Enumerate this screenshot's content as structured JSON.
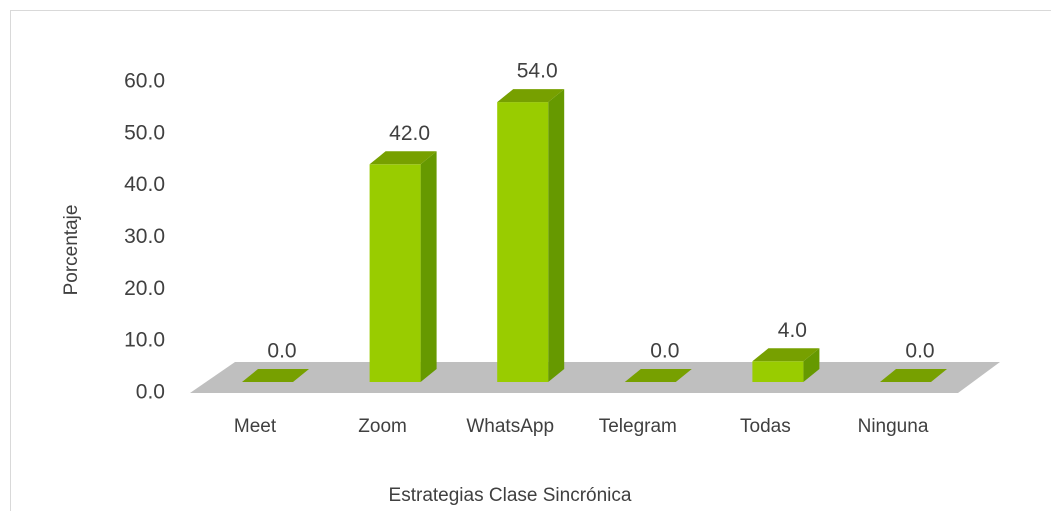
{
  "chart_data": {
    "type": "bar3d",
    "categories": [
      "Meet",
      "Zoom",
      "WhatsApp",
      "Telegram",
      "Todas",
      "Ninguna"
    ],
    "values": [
      0,
      42,
      54,
      0,
      4,
      0
    ],
    "value_labels": [
      "0.0",
      "42.0",
      "54.0",
      "0.0",
      "4.0",
      "0.0"
    ],
    "color": "#99cc00",
    "xlabel": "Estrategias Clase Sincrónica",
    "ylabel": "Porcentaje",
    "ylim": [
      0,
      60
    ],
    "yticks": [
      {
        "value": 0,
        "label": "0.0"
      },
      {
        "value": 10,
        "label": "10.0"
      },
      {
        "value": 20,
        "label": "20.0"
      },
      {
        "value": 30,
        "label": "30.0"
      },
      {
        "value": 40,
        "label": "40.0"
      },
      {
        "value": 50,
        "label": "50.0"
      },
      {
        "value": 60,
        "label": "60.0"
      }
    ]
  }
}
